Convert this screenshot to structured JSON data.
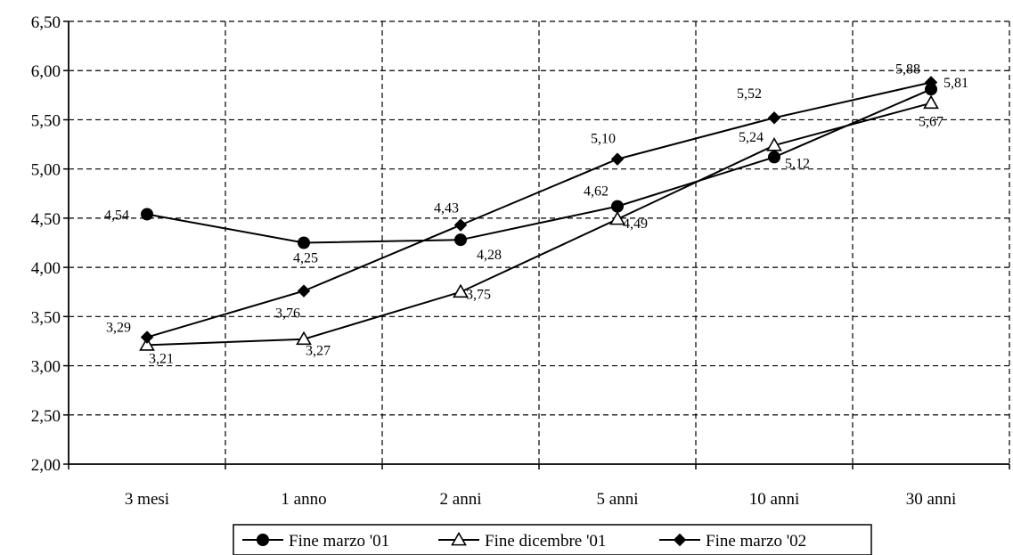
{
  "chart_data": {
    "type": "line",
    "categories": [
      "3 mesi",
      "1 anno",
      "2 anni",
      "5 anni",
      "10 anni",
      "30 anni"
    ],
    "ylim": [
      2.0,
      6.5
    ],
    "ytick_values": [
      2.0,
      2.5,
      3.0,
      3.5,
      4.0,
      4.5,
      5.0,
      5.5,
      6.0,
      6.5
    ],
    "ytick_labels": [
      "2,00",
      "2,50",
      "3,00",
      "3,50",
      "4,00",
      "4,50",
      "5,00",
      "5,50",
      "6,00",
      "6,50"
    ],
    "grid": true,
    "legend_position": "bottom",
    "series": [
      {
        "name": "Fine marzo '01",
        "marker": "circle",
        "color": "#000000",
        "values": [
          4.54,
          4.25,
          4.28,
          4.62,
          5.12,
          5.81
        ],
        "labels": [
          "4,54",
          "4,25",
          "4,28",
          "4,62",
          "5,12",
          "5,81"
        ]
      },
      {
        "name": "Fine dicembre '01",
        "marker": "triangle",
        "color": "#000000",
        "values": [
          3.21,
          3.27,
          3.75,
          4.49,
          5.24,
          5.67
        ],
        "labels": [
          "3,21",
          "3,27",
          "3,75",
          "4,49",
          "5,24",
          "5,67"
        ]
      },
      {
        "name": "Fine marzo '02",
        "marker": "diamond",
        "color": "#000000",
        "values": [
          3.29,
          3.76,
          4.43,
          5.1,
          5.52,
          5.88
        ],
        "labels": [
          "3,29",
          "3,76",
          "4,43",
          "5,10",
          "5,52",
          "5,88"
        ]
      }
    ]
  }
}
